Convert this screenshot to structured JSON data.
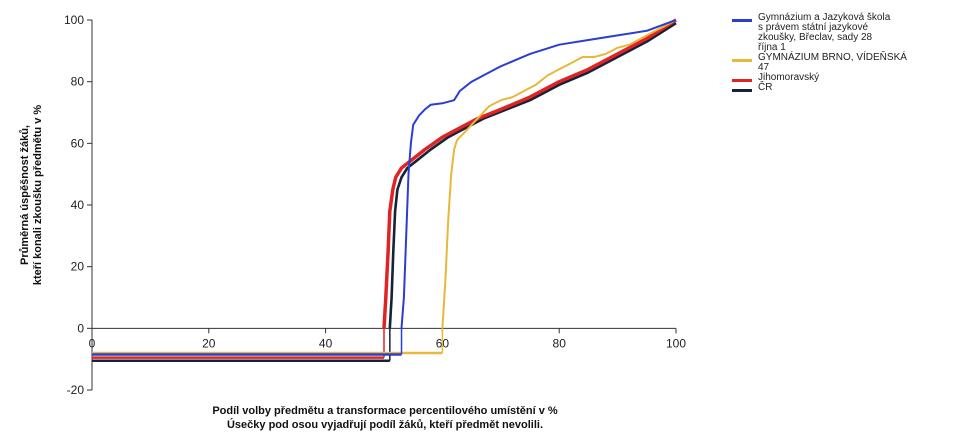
{
  "chart_data": {
    "type": "line",
    "ylabel": "Průměrná úspěšnost žáků,\nkteří konali zkoušku předmětu v %",
    "xlabel": "Podíl volby předmětu a transformace percentilového umístění v %\nÚsečky pod osou vyjadřují podíl žáků, kteří předmět nevolili.",
    "xlim": [
      0,
      100
    ],
    "ylim": [
      -20,
      100
    ],
    "x_ticks": [
      "0",
      "20",
      "40",
      "60",
      "80",
      "100"
    ],
    "y_ticks": [
      "-20",
      "0",
      "20",
      "40",
      "60",
      "80",
      "100"
    ],
    "legend_position": "right",
    "series": [
      {
        "name": "Gymnázium a Jazyková škola\ns právem státní jazykové\nzkoušky, Břeclav, sady 28\nříjna 1",
        "color": "#2a3fd0",
        "points": [
          [
            53,
            0
          ],
          [
            53.4,
            10
          ],
          [
            53.8,
            30
          ],
          [
            54.2,
            50
          ],
          [
            54.6,
            60
          ],
          [
            55,
            66
          ],
          [
            56,
            69
          ],
          [
            57,
            71
          ],
          [
            58,
            72.5
          ],
          [
            60,
            73
          ],
          [
            62,
            74
          ],
          [
            63,
            77
          ],
          [
            65,
            80
          ],
          [
            67,
            82
          ],
          [
            70,
            85
          ],
          [
            75,
            89
          ],
          [
            80,
            92
          ],
          [
            85,
            93.5
          ],
          [
            90,
            95
          ],
          [
            95,
            96.5
          ],
          [
            100,
            100
          ]
        ],
        "bar": {
          "value": -8.5,
          "x_end": 53
        }
      },
      {
        "name": "GYMNÁZIUM BRNO, VÍDEŇSKÁ\n47",
        "color": "#e8b83a",
        "points": [
          [
            60,
            0
          ],
          [
            60.5,
            15
          ],
          [
            61,
            35
          ],
          [
            61.5,
            50
          ],
          [
            62,
            58
          ],
          [
            62.5,
            61
          ],
          [
            64,
            64
          ],
          [
            66,
            68
          ],
          [
            68,
            72
          ],
          [
            70,
            74
          ],
          [
            72,
            75
          ],
          [
            74,
            77
          ],
          [
            76,
            79
          ],
          [
            78,
            82
          ],
          [
            80,
            84
          ],
          [
            82,
            86
          ],
          [
            84,
            88
          ],
          [
            86,
            88
          ],
          [
            88,
            89
          ],
          [
            90,
            91
          ],
          [
            92,
            92
          ],
          [
            94,
            94
          ],
          [
            96,
            96
          ],
          [
            98,
            98
          ],
          [
            100,
            100
          ]
        ],
        "bar": {
          "value": -8,
          "x_end": 60
        }
      },
      {
        "name": "Jihomoravský",
        "color": "#e02424",
        "points": [
          [
            50,
            0
          ],
          [
            50.3,
            10
          ],
          [
            50.7,
            25
          ],
          [
            51,
            38
          ],
          [
            51.5,
            45
          ],
          [
            52,
            49
          ],
          [
            53,
            52
          ],
          [
            55,
            55
          ],
          [
            57,
            58
          ],
          [
            60,
            62
          ],
          [
            63,
            65
          ],
          [
            66,
            68
          ],
          [
            70,
            71
          ],
          [
            75,
            75
          ],
          [
            80,
            80
          ],
          [
            85,
            84
          ],
          [
            90,
            89
          ],
          [
            95,
            94
          ],
          [
            100,
            100
          ]
        ],
        "bar": {
          "value": -9.5,
          "x_end": 50
        }
      },
      {
        "name": "ČR",
        "color": "#152238",
        "points": [
          [
            51,
            0
          ],
          [
            51.3,
            10
          ],
          [
            51.6,
            25
          ],
          [
            51.9,
            38
          ],
          [
            52.3,
            45
          ],
          [
            53,
            49
          ],
          [
            54,
            52
          ],
          [
            56,
            55
          ],
          [
            58,
            58
          ],
          [
            61,
            62
          ],
          [
            64,
            65
          ],
          [
            67,
            68
          ],
          [
            71,
            71
          ],
          [
            75,
            74
          ],
          [
            80,
            79
          ],
          [
            85,
            83
          ],
          [
            90,
            88
          ],
          [
            95,
            93
          ],
          [
            100,
            99
          ]
        ],
        "bar": {
          "value": -10.5,
          "x_end": 51
        }
      }
    ]
  }
}
